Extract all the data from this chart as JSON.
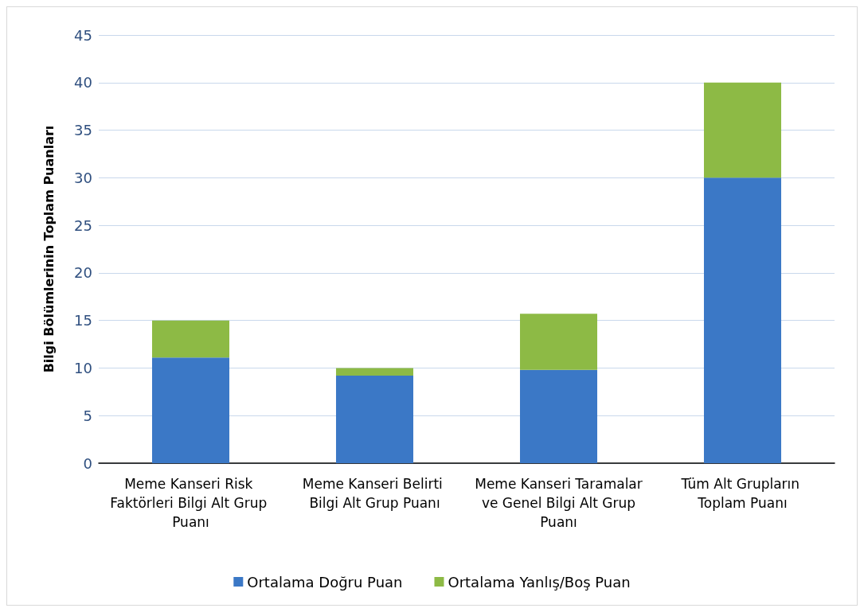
{
  "chart_data": {
    "type": "bar",
    "stacked": true,
    "ylabel": "Bilgi Bölümlerinin Toplam Puanları",
    "categories": [
      "Meme Kanseri Risk Faktörleri Bilgi Alt Grup Puanı",
      "Meme Kanseri Belirti Bilgi Alt Grup Puanı",
      "Meme Kanseri Taramalar ve Genel Bilgi Alt Grup Puanı",
      "Tüm Alt Grupların Toplam Puanı"
    ],
    "series": [
      {
        "name": "Ortalama Doğru Puan",
        "color": "#3b78c6",
        "values": [
          11.1,
          9.2,
          9.8,
          30
        ]
      },
      {
        "name": "Ortalama Yanlış/Boş Puan",
        "color": "#8dba45",
        "values": [
          3.9,
          0.8,
          5.9,
          10
        ]
      }
    ],
    "ylim": [
      0,
      45
    ],
    "yticks": [
      0,
      5,
      10,
      15,
      20,
      25,
      30,
      35,
      40,
      45
    ],
    "grid": "y",
    "legend": "bottom"
  }
}
